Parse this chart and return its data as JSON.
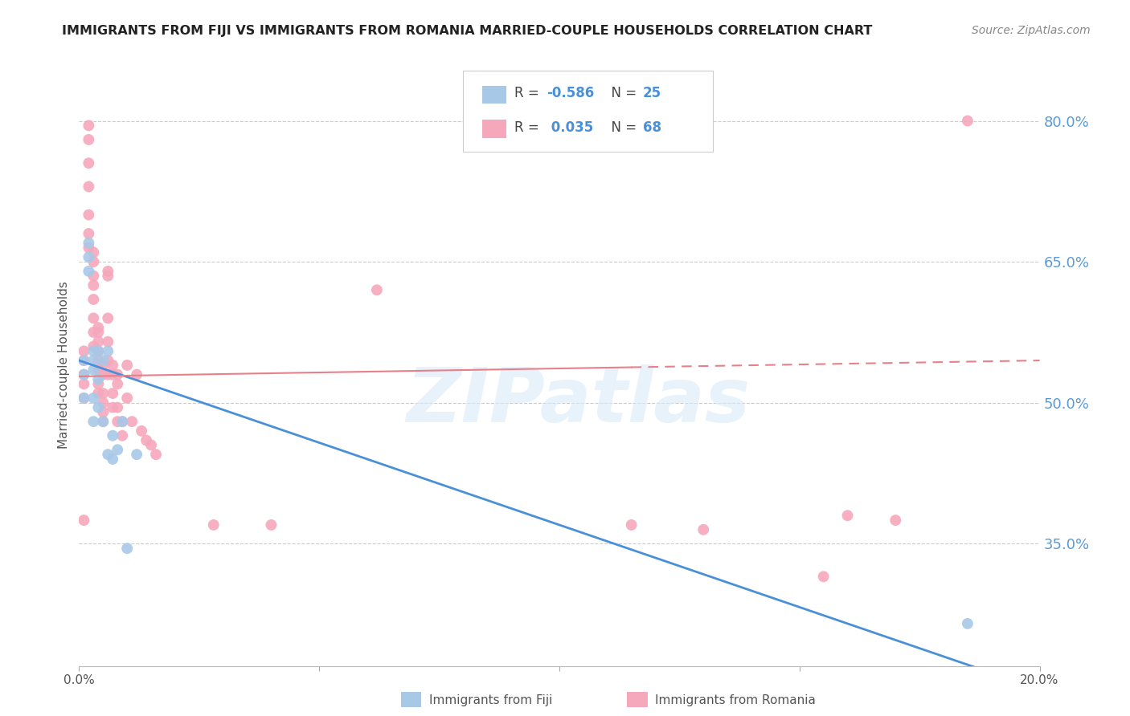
{
  "title": "IMMIGRANTS FROM FIJI VS IMMIGRANTS FROM ROMANIA MARRIED-COUPLE HOUSEHOLDS CORRELATION CHART",
  "source": "Source: ZipAtlas.com",
  "ylabel": "Married-couple Households",
  "right_ytick_labels": [
    "80.0%",
    "65.0%",
    "50.0%",
    "35.0%"
  ],
  "right_ytick_values": [
    0.8,
    0.65,
    0.5,
    0.35
  ],
  "xlim": [
    0.0,
    0.2
  ],
  "ylim": [
    0.22,
    0.86
  ],
  "fiji_R": "-0.586",
  "fiji_N": "25",
  "romania_R": "0.035",
  "romania_N": "68",
  "fiji_color": "#a8c8e8",
  "romania_color": "#f5a8bc",
  "fiji_line_color": "#4a90d9",
  "romania_line_color": "#e8808a",
  "watermark": "ZIPatlas",
  "legend_fiji_label": "Immigrants from Fiji",
  "legend_romania_label": "Immigrants from Romania",
  "fiji_x": [
    0.001,
    0.001,
    0.001,
    0.002,
    0.002,
    0.002,
    0.003,
    0.003,
    0.003,
    0.003,
    0.004,
    0.004,
    0.004,
    0.005,
    0.005,
    0.006,
    0.006,
    0.007,
    0.007,
    0.008,
    0.009,
    0.01,
    0.012,
    0.185,
    0.003
  ],
  "fiji_y": [
    0.545,
    0.53,
    0.505,
    0.67,
    0.655,
    0.64,
    0.555,
    0.545,
    0.535,
    0.505,
    0.555,
    0.525,
    0.495,
    0.545,
    0.48,
    0.555,
    0.445,
    0.465,
    0.44,
    0.45,
    0.48,
    0.345,
    0.445,
    0.265,
    0.48
  ],
  "romania_x": [
    0.001,
    0.001,
    0.001,
    0.001,
    0.001,
    0.002,
    0.002,
    0.002,
    0.002,
    0.002,
    0.002,
    0.002,
    0.003,
    0.003,
    0.003,
    0.003,
    0.003,
    0.003,
    0.003,
    0.003,
    0.004,
    0.004,
    0.004,
    0.004,
    0.004,
    0.004,
    0.004,
    0.004,
    0.005,
    0.005,
    0.005,
    0.005,
    0.005,
    0.005,
    0.006,
    0.006,
    0.006,
    0.006,
    0.006,
    0.006,
    0.007,
    0.007,
    0.007,
    0.007,
    0.008,
    0.008,
    0.008,
    0.008,
    0.009,
    0.009,
    0.01,
    0.01,
    0.011,
    0.012,
    0.013,
    0.014,
    0.015,
    0.016,
    0.028,
    0.04,
    0.062,
    0.115,
    0.13,
    0.155,
    0.16,
    0.17,
    0.185,
    0.001
  ],
  "romania_y": [
    0.555,
    0.545,
    0.53,
    0.52,
    0.505,
    0.795,
    0.78,
    0.755,
    0.73,
    0.7,
    0.68,
    0.665,
    0.66,
    0.65,
    0.635,
    0.625,
    0.61,
    0.59,
    0.575,
    0.56,
    0.58,
    0.575,
    0.565,
    0.555,
    0.545,
    0.535,
    0.52,
    0.51,
    0.54,
    0.53,
    0.51,
    0.5,
    0.49,
    0.48,
    0.64,
    0.635,
    0.59,
    0.565,
    0.545,
    0.53,
    0.54,
    0.53,
    0.51,
    0.495,
    0.53,
    0.52,
    0.495,
    0.48,
    0.48,
    0.465,
    0.54,
    0.505,
    0.48,
    0.53,
    0.47,
    0.46,
    0.455,
    0.445,
    0.37,
    0.37,
    0.62,
    0.37,
    0.365,
    0.315,
    0.38,
    0.375,
    0.8,
    0.375
  ]
}
